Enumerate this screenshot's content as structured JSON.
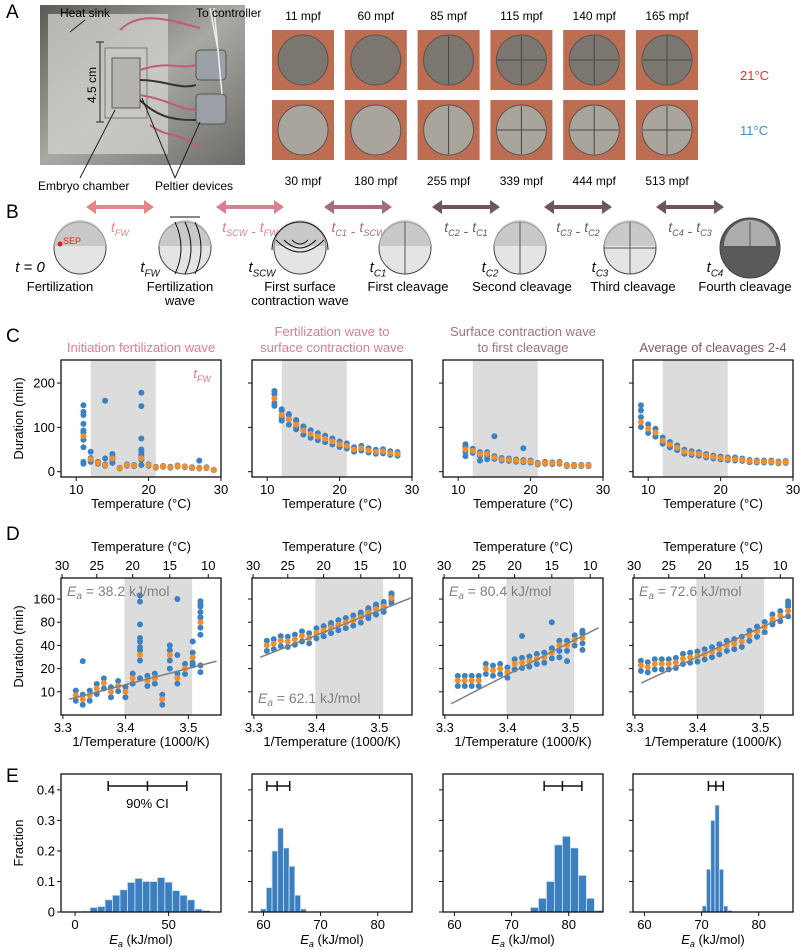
{
  "panels": {
    "a": "A",
    "b": "B",
    "c": "C",
    "d": "D",
    "e": "E"
  },
  "panel_a": {
    "heat_sink": "Heat sink",
    "to_controller": "To controller",
    "scale": "4.5 cm",
    "embryo_chamber": "Embryo chamber",
    "peltier": "Peltier devices",
    "top_times": [
      "11 mpf",
      "60 mpf",
      "85 mpf",
      "115 mpf",
      "140 mpf",
      "165 mpf"
    ],
    "bottom_times": [
      "30 mpf",
      "180 mpf",
      "255 mpf",
      "339 mpf",
      "444 mpf",
      "513 mpf"
    ],
    "temp_high": "21°C",
    "temp_low": "11°C",
    "colors": {
      "high": "#e0303a",
      "low": "#3b8fd0"
    }
  },
  "panel_b": {
    "arrows": [
      {
        "t": "t",
        "sub": "FW",
        "color": "#e8848f",
        "parts": [
          [
            "t",
            "FW"
          ]
        ]
      },
      {
        "color": "#d9808e",
        "parts": [
          [
            "t",
            "SCW"
          ],
          [
            "t",
            "FW"
          ]
        ]
      },
      {
        "color": "#a86d7c",
        "parts": [
          [
            "t",
            "C1"
          ],
          [
            "t",
            "SCW"
          ]
        ]
      },
      {
        "color": "#705560",
        "parts": [
          [
            "t",
            "C2"
          ],
          [
            "t",
            "C1"
          ]
        ]
      },
      {
        "color": "#705560",
        "parts": [
          [
            "t",
            "C3"
          ],
          [
            "t",
            "C2"
          ]
        ]
      },
      {
        "color": "#705560",
        "parts": [
          [
            "t",
            "C4"
          ],
          [
            "t",
            "C3"
          ]
        ]
      }
    ],
    "time_labels": [
      [
        "t = 0",
        ""
      ],
      [
        "t",
        "FW"
      ],
      [
        "t",
        "SCW"
      ],
      [
        "t",
        "C1"
      ],
      [
        "t",
        "C2"
      ],
      [
        "t",
        "C3"
      ],
      [
        "t",
        "C4"
      ]
    ],
    "sep": "SEP",
    "stages": [
      [
        "Fertilization"
      ],
      [
        "Fertilization",
        "wave"
      ],
      [
        "First surface",
        "contraction wave"
      ],
      [
        "First cleavage"
      ],
      [
        "Second cleavage"
      ],
      [
        "Third cleavage"
      ],
      [
        "Fourth cleavage"
      ]
    ]
  },
  "colors": {
    "individual": "#3b82c4",
    "mean": "#f28e2b",
    "shade": "#dcdcdc",
    "fit": "#808080",
    "bar": "#3b7fc0"
  },
  "chart_data": [
    {
      "panel": "C",
      "type": "scatter",
      "title": [
        "Initiation fertilization wave"
      ],
      "title_color": "#e8798a",
      "annotation": [
        "t",
        "FW"
      ],
      "xlabel": "Temperature (°C)",
      "ylabel": "Duration (min)",
      "xlim": [
        7.9,
        30
      ],
      "ylim": [
        -12,
        252
      ],
      "xticks": [
        10,
        20,
        30
      ],
      "yticks": [
        0,
        100,
        200
      ],
      "shade": [
        12,
        21
      ],
      "mean_x0": 11,
      "mean": [
        80,
        28,
        20,
        15,
        30,
        8,
        15,
        14,
        30,
        15,
        10,
        12,
        10,
        13,
        11,
        9,
        8,
        9,
        4
      ],
      "individual": [
        [
          11,
          150
        ],
        [
          11,
          135
        ],
        [
          11,
          128
        ],
        [
          11,
          108
        ],
        [
          11,
          93
        ],
        [
          11,
          55
        ],
        [
          11,
          22
        ],
        [
          11,
          18
        ],
        [
          12,
          45
        ],
        [
          12,
          22
        ],
        [
          14,
          160
        ],
        [
          14,
          30
        ],
        [
          15,
          40
        ],
        [
          15,
          20
        ],
        [
          19,
          178
        ],
        [
          19,
          148
        ],
        [
          19,
          75
        ],
        [
          19,
          50
        ],
        [
          19,
          45
        ],
        [
          19,
          38
        ],
        [
          19,
          15
        ],
        [
          27,
          25
        ]
      ]
    },
    {
      "panel": "C",
      "type": "scatter",
      "title": [
        "Fertilization wave to",
        "surface contraction wave"
      ],
      "title_color": "#d77f8e",
      "xlabel": "Temperature (°C)",
      "xlim": [
        7.9,
        30
      ],
      "ylim": [
        -12,
        252
      ],
      "xticks": [
        10,
        20,
        30
      ],
      "yticks": [
        0,
        100,
        200
      ],
      "shade": [
        12,
        21
      ],
      "mean_x0": 11,
      "mean": [
        165,
        128,
        118,
        106,
        93,
        85,
        79,
        74,
        68,
        62,
        58,
        50,
        53,
        48,
        45,
        46,
        42,
        40
      ],
      "individual": [
        [
          11,
          182
        ],
        [
          11,
          175
        ],
        [
          11,
          155
        ],
        [
          12,
          138
        ],
        [
          12,
          122
        ],
        [
          13,
          128
        ],
        [
          14,
          115
        ],
        [
          14,
          100
        ],
        [
          15,
          100
        ],
        [
          19,
          72
        ]
      ]
    },
    {
      "panel": "C",
      "type": "scatter",
      "title": [
        "Surface contraction wave",
        "to first cleavage"
      ],
      "title_color": "#a56f80",
      "xlabel": "Temperature (°C)",
      "xlim": [
        7.9,
        30
      ],
      "ylim": [
        -12,
        252
      ],
      "xticks": [
        10,
        20,
        30
      ],
      "yticks": [
        0,
        100,
        200
      ],
      "shade": [
        12,
        21
      ],
      "mean_x0": 11,
      "mean": [
        50,
        47,
        40,
        40,
        32,
        28,
        27,
        25,
        24,
        23,
        18,
        20,
        19,
        20,
        14,
        14,
        14,
        14
      ],
      "individual": [
        [
          11,
          62
        ],
        [
          11,
          58
        ],
        [
          11,
          35
        ],
        [
          13,
          25
        ],
        [
          14,
          28
        ],
        [
          15,
          80
        ],
        [
          19,
          53
        ]
      ]
    },
    {
      "panel": "C",
      "type": "scatter",
      "title": [
        "Average of cleavages 2-4"
      ],
      "title_color": "#7b5a66",
      "xlabel": "Temperature (°C)",
      "xlim": [
        7.9,
        30
      ],
      "ylim": [
        -12,
        252
      ],
      "xticks": [
        10,
        20,
        30
      ],
      "yticks": [
        0,
        100,
        200
      ],
      "shade": [
        12,
        21
      ],
      "mean_x0": 9,
      "mean": [
        112,
        97,
        88,
        70,
        61,
        54,
        45,
        42,
        40,
        36,
        33,
        31,
        29,
        28,
        27,
        24,
        23,
        23,
        23,
        21,
        22
      ],
      "individual": [
        [
          9,
          150
        ],
        [
          9,
          138
        ],
        [
          11,
          80
        ],
        [
          22,
          32
        ]
      ]
    },
    {
      "panel": "D",
      "type": "scatter",
      "source": 0,
      "xlabel": "1/Temperature (1000/K)",
      "top_xlabel": "Temperature (°C)",
      "ylabel": "Duration (min)",
      "xlim": [
        3.297,
        3.552
      ],
      "ylim": [
        5,
        300
      ],
      "yscale": "log",
      "xticks": [
        3.3,
        3.4,
        3.5
      ],
      "top_xticks": [
        30,
        25,
        20,
        15,
        10
      ],
      "yticks": [
        10,
        20,
        40,
        80,
        160
      ],
      "shade": [
        3.398,
        3.506
      ],
      "fit": [
        [
          3.31,
          8
        ],
        [
          3.545,
          25
        ]
      ],
      "ea": {
        "symbol": "E",
        "sub": "a",
        "value": "= 38.2 kJ/mol",
        "position": "top-left"
      }
    },
    {
      "panel": "D",
      "type": "scatter",
      "source": 1,
      "xlabel": "1/Temperature (1000/K)",
      "top_xlabel": "Temperature (°C)",
      "xlim": [
        3.297,
        3.552
      ],
      "ylim": [
        5,
        300
      ],
      "yscale": "log",
      "xticks": [
        3.3,
        3.4,
        3.5
      ],
      "top_xticks": [
        30,
        25,
        20,
        15,
        10
      ],
      "yticks": [
        10,
        20,
        40,
        80,
        160
      ],
      "shade": [
        3.398,
        3.506
      ],
      "fit": [
        [
          3.31,
          28
        ],
        [
          3.55,
          165
        ]
      ],
      "ea": {
        "symbol": "E",
        "sub": "a",
        "value": "= 62.1 kJ/mol",
        "position": "bottom-left"
      }
    },
    {
      "panel": "D",
      "type": "scatter",
      "source": 2,
      "xlabel": "1/Temperature (1000/K)",
      "top_xlabel": "Temperature (°C)",
      "xlim": [
        3.297,
        3.552
      ],
      "ylim": [
        5,
        300
      ],
      "yscale": "log",
      "xticks": [
        3.3,
        3.4,
        3.5
      ],
      "top_xticks": [
        30,
        25,
        20,
        15,
        10
      ],
      "yticks": [
        10,
        20,
        40,
        80,
        160
      ],
      "shade": [
        3.398,
        3.506
      ],
      "fit": [
        [
          3.31,
          7
        ],
        [
          3.545,
          68
        ]
      ],
      "ea": {
        "symbol": "E",
        "sub": "a",
        "value": "= 80.4 kJ/mol",
        "position": "top-left"
      }
    },
    {
      "panel": "D",
      "type": "scatter",
      "source": 3,
      "xlabel": "1/Temperature (1000/K)",
      "top_xlabel": "Temperature (°C)",
      "xlim": [
        3.297,
        3.552
      ],
      "ylim": [
        5,
        300
      ],
      "yscale": "log",
      "xticks": [
        3.3,
        3.4,
        3.5
      ],
      "top_xticks": [
        30,
        25,
        20,
        15,
        10
      ],
      "yticks": [
        10,
        20,
        40,
        80,
        160
      ],
      "shade": [
        3.398,
        3.506
      ],
      "fit": [
        [
          3.31,
          13
        ],
        [
          3.545,
          100
        ]
      ],
      "ea": {
        "symbol": "E",
        "sub": "a",
        "value": "= 72.6 kJ/mol",
        "position": "top-left"
      }
    },
    {
      "panel": "E",
      "type": "bar",
      "xlabel": [
        "E",
        "a",
        " (kJ/mol)"
      ],
      "ylabel": "Fraction",
      "xlim": [
        -7.5,
        78
      ],
      "ylim": [
        0,
        0.452
      ],
      "xticks": [
        0,
        50
      ],
      "yticks": [
        0,
        0.1,
        0.2,
        0.3,
        0.4
      ],
      "bin_start": 4,
      "bin_width": 4,
      "values": [
        0.003,
        0.015,
        0.018,
        0.04,
        0.055,
        0.073,
        0.097,
        0.11,
        0.1,
        0.1,
        0.113,
        0.098,
        0.07,
        0.055,
        0.04,
        0.01,
        0.005
      ],
      "ci": [
        17.7,
        38.7,
        59.7
      ],
      "ci_label": "90% CI"
    },
    {
      "panel": "E",
      "type": "bar",
      "xlabel": [
        "E",
        "a",
        " (kJ/mol)"
      ],
      "xlim": [
        58,
        86
      ],
      "ylim": [
        0,
        0.452
      ],
      "xticks": [
        60,
        70,
        80
      ],
      "yticks": [
        0,
        0.1,
        0.2,
        0.3,
        0.4
      ],
      "bin_start": 59.5,
      "bin_width": 1,
      "values": [
        0.01,
        0.08,
        0.2,
        0.275,
        0.21,
        0.15,
        0.055,
        0.01
      ],
      "ci": [
        60.6,
        62.4,
        64.6
      ]
    },
    {
      "panel": "E",
      "type": "bar",
      "xlabel": [
        "E",
        "a",
        " (kJ/mol)"
      ],
      "xlim": [
        58,
        86
      ],
      "ylim": [
        0,
        0.452
      ],
      "xticks": [
        60,
        70,
        80
      ],
      "yticks": [
        0,
        0.1,
        0.2,
        0.3,
        0.4
      ],
      "bin_start": 73.3,
      "bin_width": 1.4,
      "values": [
        0.015,
        0.045,
        0.1,
        0.22,
        0.248,
        0.21,
        0.12,
        0.045,
        0.005
      ],
      "ci": [
        75.7,
        78.9,
        82.3
      ]
    },
    {
      "panel": "E",
      "type": "bar",
      "xlabel": [
        "E",
        "a",
        " (kJ/mol)"
      ],
      "xlim": [
        58,
        86
      ],
      "ylim": [
        0,
        0.452
      ],
      "xticks": [
        60,
        70,
        80
      ],
      "yticks": [
        0,
        0.1,
        0.2,
        0.3,
        0.4
      ],
      "bin_start": 70.1,
      "bin_width": 0.75,
      "values": [
        0.02,
        0.14,
        0.3,
        0.35,
        0.14,
        0.02,
        0.005
      ],
      "ci": [
        71.2,
        72.5,
        73.8
      ]
    }
  ]
}
